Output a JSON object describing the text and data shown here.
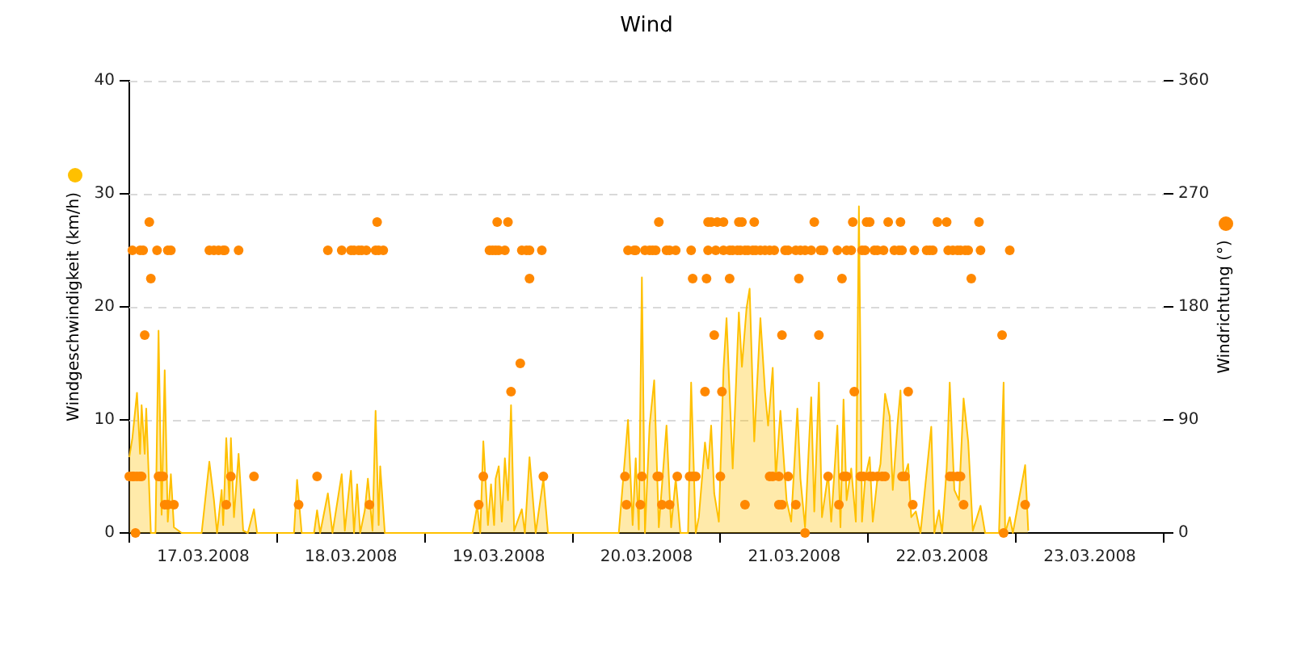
{
  "chart_data": {
    "type": "area",
    "title": "Wind",
    "ylabel": "Windgeschwindigkeit (km/h)",
    "y2label": "Windrichtung (°)",
    "xlim": [
      "2008-03-17T00:00",
      "2008-03-24T00:00"
    ],
    "xticks": [
      {
        "value": "2008-03-17T00:00",
        "label": null
      },
      {
        "value": "2008-03-17T12:00",
        "label": "17.03.2008"
      },
      {
        "value": "2008-03-18T00:00",
        "label": null
      },
      {
        "value": "2008-03-18T12:00",
        "label": "18.03.2008"
      },
      {
        "value": "2008-03-19T00:00",
        "label": null
      },
      {
        "value": "2008-03-19T12:00",
        "label": "19.03.2008"
      },
      {
        "value": "2008-03-20T00:00",
        "label": null
      },
      {
        "value": "2008-03-20T12:00",
        "label": "20.03.2008"
      },
      {
        "value": "2008-03-21T00:00",
        "label": null
      },
      {
        "value": "2008-03-21T12:00",
        "label": "21.03.2008"
      },
      {
        "value": "2008-03-22T00:00",
        "label": null
      },
      {
        "value": "2008-03-22T12:00",
        "label": "22.03.2008"
      },
      {
        "value": "2008-03-23T00:00",
        "label": null
      },
      {
        "value": "2008-03-23T12:00",
        "label": "23.03.2008"
      },
      {
        "value": "2008-03-24T00:00",
        "label": null
      }
    ],
    "ylim": [
      0,
      40
    ],
    "yticks": [
      0,
      10,
      20,
      30,
      40
    ],
    "y2lim": [
      0,
      360
    ],
    "y2ticks": [
      0,
      90,
      180,
      270,
      360
    ],
    "grid": "y",
    "legend": false,
    "series": [
      {
        "type": "area",
        "color": "#ffc000",
        "marker": "none",
        "x": [
          "2008-03-17T00:00",
          "2008-03-17T00:30",
          "2008-03-17T01:15",
          "2008-03-17T01:45",
          "2008-03-17T02:00",
          "2008-03-17T02:30",
          "2008-03-17T02:45",
          "2008-03-17T03:30",
          "2008-03-17T04:15",
          "2008-03-17T04:45",
          "2008-03-17T05:15",
          "2008-03-17T05:45",
          "2008-03-17T06:15",
          "2008-03-17T06:45",
          "2008-03-17T07:15",
          "2008-03-17T08:30",
          "2008-03-17T11:45",
          "2008-03-17T13:00",
          "2008-03-17T13:45",
          "2008-03-17T14:15",
          "2008-03-17T15:00",
          "2008-03-17T15:15",
          "2008-03-17T15:45",
          "2008-03-17T16:15",
          "2008-03-17T16:30",
          "2008-03-17T17:00",
          "2008-03-17T17:45",
          "2008-03-17T18:30",
          "2008-03-17T19:15",
          "2008-03-17T20:15",
          "2008-03-17T20:45",
          "2008-03-18T02:45",
          "2008-03-18T03:15",
          "2008-03-18T04:00",
          "2008-03-18T06:00",
          "2008-03-18T06:30",
          "2008-03-18T07:00",
          "2008-03-18T08:15",
          "2008-03-18T09:00",
          "2008-03-18T10:30",
          "2008-03-18T11:00",
          "2008-03-18T12:00",
          "2008-03-18T12:30",
          "2008-03-18T13:00",
          "2008-03-18T13:30",
          "2008-03-18T14:15",
          "2008-03-18T14:45",
          "2008-03-18T15:30",
          "2008-03-18T16:00",
          "2008-03-18T16:30",
          "2008-03-18T16:45",
          "2008-03-18T17:30",
          "2008-03-19T07:45",
          "2008-03-19T08:30",
          "2008-03-19T09:00",
          "2008-03-19T09:30",
          "2008-03-19T10:15",
          "2008-03-19T10:45",
          "2008-03-19T11:15",
          "2008-03-19T11:30",
          "2008-03-19T12:00",
          "2008-03-19T12:30",
          "2008-03-19T13:00",
          "2008-03-19T13:30",
          "2008-03-19T14:00",
          "2008-03-19T14:30",
          "2008-03-19T15:45",
          "2008-03-19T16:15",
          "2008-03-19T17:00",
          "2008-03-19T18:00",
          "2008-03-19T19:15",
          "2008-03-19T20:00",
          "2008-03-20T07:30",
          "2008-03-20T09:00",
          "2008-03-20T09:45",
          "2008-03-20T10:15",
          "2008-03-20T10:45",
          "2008-03-20T11:15",
          "2008-03-20T11:45",
          "2008-03-20T12:30",
          "2008-03-20T13:15",
          "2008-03-20T14:00",
          "2008-03-20T15:15",
          "2008-03-20T16:00",
          "2008-03-20T16:45",
          "2008-03-20T17:30",
          "2008-03-20T18:45",
          "2008-03-20T19:15",
          "2008-03-20T20:00",
          "2008-03-20T20:30",
          "2008-03-20T21:30",
          "2008-03-20T22:00",
          "2008-03-20T22:30",
          "2008-03-20T23:00",
          "2008-03-20T23:45",
          "2008-03-21T00:30",
          "2008-03-21T01:00",
          "2008-03-21T02:00",
          "2008-03-21T03:00",
          "2008-03-21T03:30",
          "2008-03-21T04:15",
          "2008-03-21T04:45",
          "2008-03-21T05:30",
          "2008-03-21T06:30",
          "2008-03-21T07:15",
          "2008-03-21T07:45",
          "2008-03-21T08:30",
          "2008-03-21T09:00",
          "2008-03-21T09:45",
          "2008-03-21T10:45",
          "2008-03-21T11:30",
          "2008-03-21T12:30",
          "2008-03-21T13:00",
          "2008-03-21T13:45",
          "2008-03-21T14:45",
          "2008-03-21T15:15",
          "2008-03-21T16:00",
          "2008-03-21T16:30",
          "2008-03-21T17:30",
          "2008-03-21T18:00",
          "2008-03-21T19:00",
          "2008-03-21T19:30",
          "2008-03-21T20:00",
          "2008-03-21T20:30",
          "2008-03-21T21:15",
          "2008-03-21T22:00",
          "2008-03-21T22:30",
          "2008-03-21T23:00",
          "2008-03-21T23:30",
          "2008-03-22T00:15",
          "2008-03-22T00:45",
          "2008-03-22T01:30",
          "2008-03-22T02:00",
          "2008-03-22T02:45",
          "2008-03-22T03:30",
          "2008-03-22T04:00",
          "2008-03-22T04:45",
          "2008-03-22T05:15",
          "2008-03-22T05:45",
          "2008-03-22T06:30",
          "2008-03-22T07:00",
          "2008-03-22T07:45",
          "2008-03-22T08:30",
          "2008-03-22T10:15",
          "2008-03-22T10:45",
          "2008-03-22T11:30",
          "2008-03-22T12:00",
          "2008-03-22T12:45",
          "2008-03-22T13:15",
          "2008-03-22T14:00",
          "2008-03-22T14:45",
          "2008-03-22T15:30",
          "2008-03-22T16:15",
          "2008-03-22T17:00",
          "2008-03-22T18:15",
          "2008-03-22T19:00",
          "2008-03-22T21:15",
          "2008-03-22T22:00",
          "2008-03-22T22:15",
          "2008-03-22T23:00",
          "2008-03-22T23:30",
          "2008-03-23T01:30",
          "2008-03-23T02:00"
        ],
        "values": [
          6.7,
          8.4,
          12.4,
          7,
          11.3,
          7,
          11,
          0,
          0,
          17.9,
          1.6,
          14.4,
          1,
          5.2,
          0.5,
          0,
          0,
          6.3,
          2.9,
          0,
          3.8,
          0.7,
          8.4,
          2.9,
          8.4,
          1.4,
          7,
          0.2,
          0,
          2.1,
          0,
          0,
          4.7,
          0,
          0,
          2,
          0,
          3.5,
          0,
          5.2,
          0.2,
          5.5,
          0,
          4.3,
          0,
          2,
          4.8,
          0.2,
          10.8,
          0.7,
          5.9,
          0,
          0,
          2.4,
          0,
          8.1,
          0.7,
          4.3,
          0.7,
          4.8,
          5.9,
          1,
          6.6,
          2.9,
          11.3,
          0.2,
          2.1,
          0,
          6.7,
          0,
          4.8,
          0,
          0,
          10,
          0.7,
          6.6,
          0.3,
          22.6,
          0,
          9.5,
          13.5,
          0.5,
          9.5,
          0.5,
          4.8,
          0,
          0,
          13.3,
          0,
          1.4,
          8,
          5.7,
          9.5,
          3.5,
          1,
          14.4,
          19,
          5.7,
          19.5,
          14.7,
          19.9,
          21.6,
          8.1,
          19,
          12.5,
          9.5,
          14.6,
          4.8,
          10.8,
          2.9,
          1,
          11,
          4.8,
          0.5,
          12,
          1.9,
          13.3,
          1.4,
          5.2,
          1,
          9.5,
          0.5,
          11.8,
          2.9,
          5.7,
          1,
          28.9,
          1,
          4.8,
          6.7,
          1,
          4.8,
          6.1,
          12.3,
          10.3,
          3.8,
          9.5,
          12.6,
          4.8,
          6.1,
          1.4,
          1.9,
          0,
          9.4,
          0,
          2,
          0,
          5.7,
          13.3,
          3.8,
          2.9,
          11.9,
          8.1,
          0.2,
          2.4,
          0,
          0,
          13.3,
          0,
          1.4,
          0,
          6,
          0.2
        ]
      },
      {
        "type": "scatter",
        "axis": "y2",
        "color": "#ff8800",
        "marker": "circle",
        "x": [
          "2008-03-17T00:00",
          "2008-03-17T00:30",
          "2008-03-17T00:30",
          "2008-03-17T00:45",
          "2008-03-17T01:00",
          "2008-03-17T01:15",
          "2008-03-17T01:45",
          "2008-03-17T01:45",
          "2008-03-17T02:00",
          "2008-03-17T02:15",
          "2008-03-17T02:30",
          "2008-03-17T03:15",
          "2008-03-17T03:30",
          "2008-03-17T04:30",
          "2008-03-17T04:45",
          "2008-03-17T05:00",
          "2008-03-17T05:30",
          "2008-03-17T05:45",
          "2008-03-17T06:15",
          "2008-03-17T06:15",
          "2008-03-17T06:45",
          "2008-03-17T07:15",
          "2008-03-17T13:00",
          "2008-03-17T13:45",
          "2008-03-17T14:30",
          "2008-03-17T15:15",
          "2008-03-17T15:30",
          "2008-03-17T15:45",
          "2008-03-17T16:30",
          "2008-03-17T17:45",
          "2008-03-17T20:15",
          "2008-03-18T03:30",
          "2008-03-18T06:30",
          "2008-03-18T08:15",
          "2008-03-18T10:30",
          "2008-03-18T12:00",
          "2008-03-18T12:30",
          "2008-03-18T13:15",
          "2008-03-18T13:45",
          "2008-03-18T14:30",
          "2008-03-18T15:00",
          "2008-03-18T16:00",
          "2008-03-18T16:15",
          "2008-03-18T16:30",
          "2008-03-18T17:15",
          "2008-03-19T08:45",
          "2008-03-19T09:30",
          "2008-03-19T10:30",
          "2008-03-19T11:00",
          "2008-03-19T11:30",
          "2008-03-19T11:45",
          "2008-03-19T12:00",
          "2008-03-19T13:00",
          "2008-03-19T13:30",
          "2008-03-19T14:00",
          "2008-03-19T15:30",
          "2008-03-19T15:45",
          "2008-03-19T16:30",
          "2008-03-19T17:00",
          "2008-03-19T17:00",
          "2008-03-19T19:00",
          "2008-03-19T19:15",
          "2008-03-20T08:30",
          "2008-03-20T08:45",
          "2008-03-20T09:00",
          "2008-03-20T10:00",
          "2008-03-20T10:15",
          "2008-03-20T11:00",
          "2008-03-20T11:15",
          "2008-03-20T11:45",
          "2008-03-20T12:30",
          "2008-03-20T13:00",
          "2008-03-20T13:30",
          "2008-03-20T13:45",
          "2008-03-20T14:00",
          "2008-03-20T14:00",
          "2008-03-20T14:30",
          "2008-03-20T15:15",
          "2008-03-20T15:45",
          "2008-03-20T15:45",
          "2008-03-20T16:45",
          "2008-03-20T17:00",
          "2008-03-20T19:00",
          "2008-03-20T19:15",
          "2008-03-20T19:30",
          "2008-03-20T19:30",
          "2008-03-20T20:00",
          "2008-03-20T21:30",
          "2008-03-20T21:45",
          "2008-03-20T22:00",
          "2008-03-20T22:00",
          "2008-03-20T22:30",
          "2008-03-20T23:00",
          "2008-03-20T23:15",
          "2008-03-20T23:30",
          "2008-03-21T00:00",
          "2008-03-21T00:15",
          "2008-03-21T00:30",
          "2008-03-21T00:30",
          "2008-03-21T01:30",
          "2008-03-21T01:30",
          "2008-03-21T02:00",
          "2008-03-21T02:45",
          "2008-03-21T03:00",
          "2008-03-21T03:15",
          "2008-03-21T03:30",
          "2008-03-21T04:00",
          "2008-03-21T04:00",
          "2008-03-21T04:30",
          "2008-03-21T05:15",
          "2008-03-21T05:30",
          "2008-03-21T05:45",
          "2008-03-21T06:30",
          "2008-03-21T07:15",
          "2008-03-21T08:00",
          "2008-03-21T08:00",
          "2008-03-21T08:30",
          "2008-03-21T08:45",
          "2008-03-21T09:30",
          "2008-03-21T09:30",
          "2008-03-21T10:00",
          "2008-03-21T10:00",
          "2008-03-21T10:30",
          "2008-03-21T11:00",
          "2008-03-21T11:00",
          "2008-03-21T12:15",
          "2008-03-21T12:15",
          "2008-03-21T12:45",
          "2008-03-21T13:00",
          "2008-03-21T13:45",
          "2008-03-21T13:45",
          "2008-03-21T14:45",
          "2008-03-21T15:15",
          "2008-03-21T16:00",
          "2008-03-21T16:15",
          "2008-03-21T16:45",
          "2008-03-21T17:30",
          "2008-03-21T19:00",
          "2008-03-21T19:15",
          "2008-03-21T19:45",
          "2008-03-21T20:00",
          "2008-03-21T20:30",
          "2008-03-21T20:30",
          "2008-03-21T21:15",
          "2008-03-21T21:30",
          "2008-03-21T21:45",
          "2008-03-21T22:45",
          "2008-03-21T23:00",
          "2008-03-21T23:15",
          "2008-03-21T23:30",
          "2008-03-21T23:45",
          "2008-03-22T00:15",
          "2008-03-22T00:15",
          "2008-03-22T00:45",
          "2008-03-22T01:00",
          "2008-03-22T01:30",
          "2008-03-22T01:30",
          "2008-03-22T02:15",
          "2008-03-22T02:30",
          "2008-03-22T02:45",
          "2008-03-22T03:15",
          "2008-03-22T04:15",
          "2008-03-22T05:00",
          "2008-03-22T05:15",
          "2008-03-22T05:30",
          "2008-03-22T05:30",
          "2008-03-22T06:00",
          "2008-03-22T06:30",
          "2008-03-22T07:15",
          "2008-03-22T07:30",
          "2008-03-22T09:30",
          "2008-03-22T10:00",
          "2008-03-22T10:30",
          "2008-03-22T11:15",
          "2008-03-22T12:45",
          "2008-03-22T13:00",
          "2008-03-22T13:15",
          "2008-03-22T13:45",
          "2008-03-22T13:45",
          "2008-03-22T14:30",
          "2008-03-22T14:30",
          "2008-03-22T15:00",
          "2008-03-22T15:00",
          "2008-03-22T15:30",
          "2008-03-22T15:45",
          "2008-03-22T16:15",
          "2008-03-22T16:45",
          "2008-03-22T18:00",
          "2008-03-22T18:15",
          "2008-03-22T21:45",
          "2008-03-22T22:00",
          "2008-03-22T23:00",
          "2008-03-23T01:30"
        ],
        "values": [
          45,
          225,
          45,
          45,
          0,
          45,
          225,
          45,
          45,
          225,
          157.5,
          247.5,
          202.5,
          225,
          45,
          45,
          45,
          22.5,
          225,
          22.5,
          225,
          22.5,
          225,
          225,
          225,
          225,
          225,
          22.5,
          45,
          225,
          45,
          22.5,
          45,
          225,
          225,
          225,
          225,
          225,
          225,
          225,
          22.5,
          225,
          247.5,
          225,
          225,
          22.5,
          45,
          225,
          225,
          225,
          247.5,
          225,
          225,
          247.5,
          112.5,
          135,
          225,
          225,
          225,
          202.5,
          225,
          45,
          45,
          22.5,
          225,
          225,
          225,
          22.5,
          45,
          225,
          225,
          225,
          225,
          45,
          247.5,
          45,
          22.5,
          225,
          225,
          22.5,
          225,
          45,
          45,
          225,
          202.5,
          45,
          45,
          112.5,
          202.5,
          247.5,
          225,
          247.5,
          157.5,
          225,
          247.5,
          45,
          112.5,
          247.5,
          225,
          225,
          202.5,
          225,
          225,
          247.5,
          225,
          247.5,
          225,
          22.5,
          225,
          225,
          247.5,
          225,
          225,
          225,
          225,
          45,
          45,
          225,
          45,
          22.5,
          157.5,
          22.5,
          225,
          225,
          45,
          225,
          22.5,
          202.5,
          225,
          225,
          0,
          225,
          247.5,
          157.5,
          225,
          225,
          45,
          225,
          22.5,
          202.5,
          45,
          225,
          45,
          225,
          247.5,
          112.5,
          45,
          225,
          45,
          225,
          247.5,
          247.5,
          45,
          45,
          225,
          225,
          45,
          45,
          225,
          45,
          247.5,
          225,
          225,
          247.5,
          225,
          45,
          45,
          112.5,
          22.5,
          225,
          225,
          225,
          225,
          247.5,
          247.5,
          225,
          45,
          225,
          45,
          225,
          45,
          225,
          45,
          22.5,
          225,
          225,
          202.5,
          247.5,
          225,
          157.5,
          0,
          225,
          22.5
        ]
      }
    ]
  }
}
